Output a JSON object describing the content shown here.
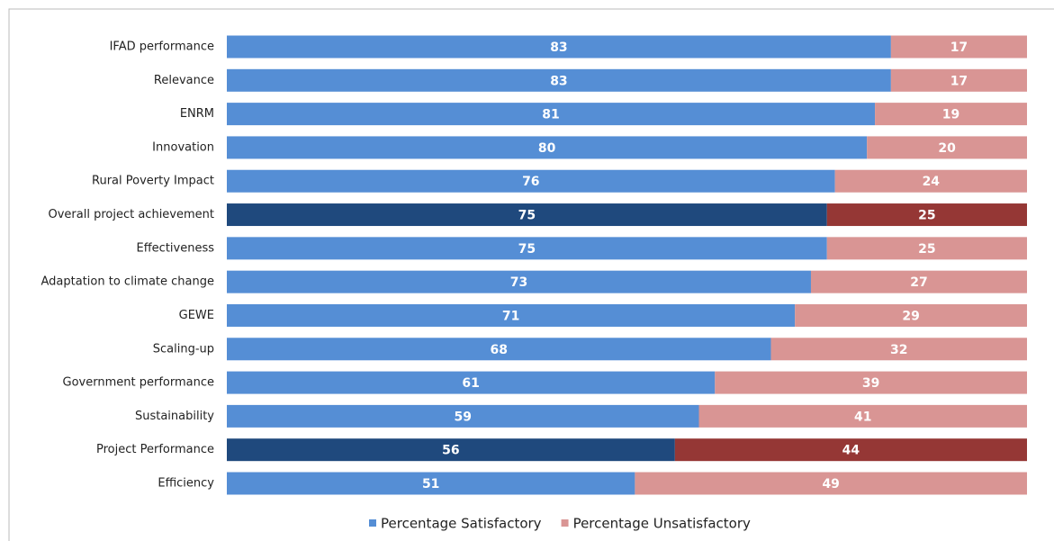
{
  "chart_data": {
    "type": "stacked_bar_horizontal",
    "categories": [
      "IFAD performance",
      "Relevance",
      "ENRM",
      "Innovation",
      "Rural Poverty Impact",
      "Overall project achievement",
      "Effectiveness",
      "Adaptation to climate change",
      "GEWE",
      "Scaling-up",
      "Government performance",
      "Sustainability",
      "Project Performance",
      "Efficiency"
    ],
    "series": [
      {
        "name": "Percentage Satisfactory",
        "color": "#558ed5",
        "colors": [
          "#558ed5",
          "#558ed5",
          "#558ed5",
          "#558ed5",
          "#558ed5",
          "#1f497d",
          "#558ed5",
          "#558ed5",
          "#558ed5",
          "#558ed5",
          "#558ed5",
          "#558ed5",
          "#1f497d",
          "#558ed5"
        ],
        "values": [
          83,
          83,
          81,
          80,
          76,
          75,
          75,
          73,
          71,
          68,
          61,
          59,
          56,
          51
        ]
      },
      {
        "name": "Percentage Unsatisfactory",
        "color": "#d99594",
        "colors": [
          "#d99594",
          "#d99594",
          "#d99594",
          "#d99594",
          "#d99594",
          "#953735",
          "#d99594",
          "#d99594",
          "#d99594",
          "#d99594",
          "#d99594",
          "#d99594",
          "#953735",
          "#d99594"
        ],
        "values": [
          17,
          17,
          19,
          20,
          24,
          25,
          25,
          27,
          29,
          32,
          39,
          41,
          44,
          49
        ]
      }
    ],
    "xlim": [
      0,
      100
    ],
    "legend": "bottom"
  }
}
